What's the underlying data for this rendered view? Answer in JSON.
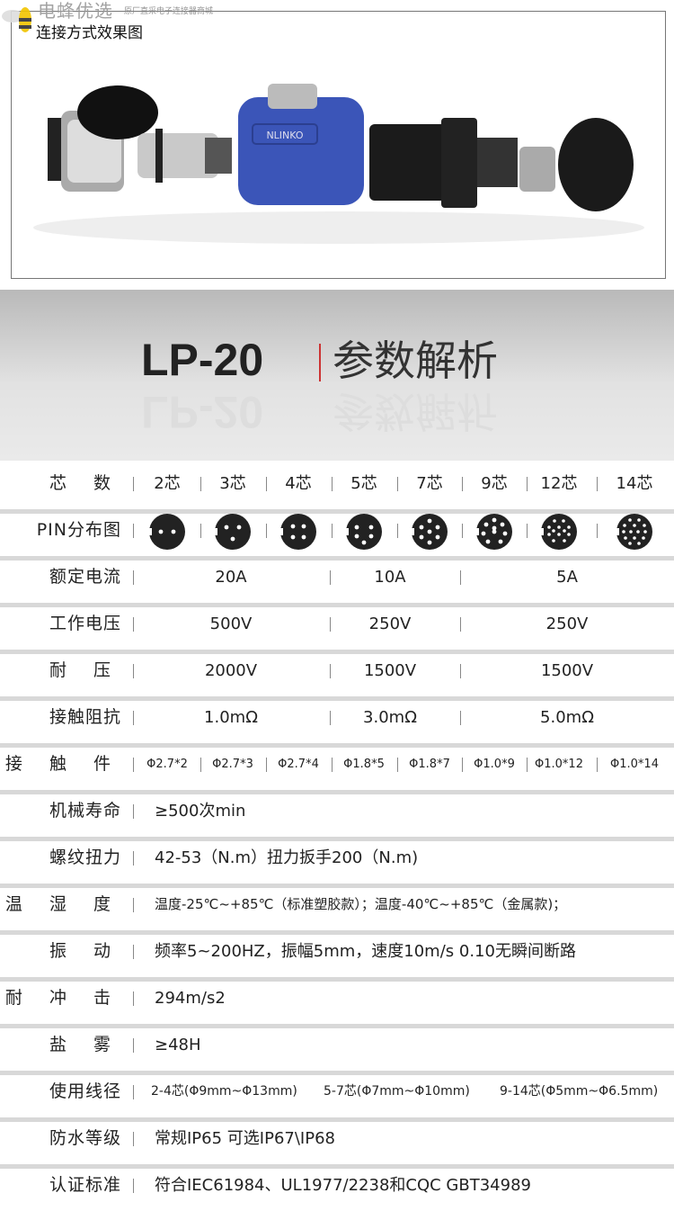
{
  "photo": {
    "caption": "连接方式效果图",
    "logo_text": "电蜂优选",
    "logo_subtitle": "原厂直采电子连接器商城",
    "product_mark": "NLINKO"
  },
  "header": {
    "model": "LP-20",
    "title": "参数解析"
  },
  "colors": {
    "connector_blue": "#3b55b8",
    "header_bg": "#cfcfcf",
    "divider": "#d8d8d8",
    "title_accent": "#cc3333"
  },
  "rows": [
    {
      "label": "芯 数",
      "cells": [
        "2芯",
        "3芯",
        "4芯",
        "5芯",
        "7芯",
        "9芯",
        "12芯",
        "14芯"
      ]
    },
    {
      "label": "PIN分布图",
      "pins": [
        2,
        3,
        4,
        5,
        7,
        9,
        12,
        14
      ]
    },
    {
      "label": "额定电流",
      "groups": [
        "20A",
        "10A",
        "5A"
      ]
    },
    {
      "label": "工作电压",
      "groups": [
        "500V",
        "250V",
        "250V"
      ]
    },
    {
      "label": "耐 压",
      "groups": [
        "2000V",
        "1500V",
        "1500V"
      ]
    },
    {
      "label": "接触阻抗",
      "groups": [
        "1.0mΩ",
        "3.0mΩ",
        "5.0mΩ"
      ]
    },
    {
      "label": "接 触 件",
      "cells": [
        "Φ2.7*2",
        "Φ2.7*3",
        "Φ2.7*4",
        "Φ1.8*5",
        "Φ1.8*7",
        "Φ1.0*9",
        "Φ1.0*12",
        "Φ1.0*14"
      ]
    },
    {
      "label": "机械寿命",
      "text": "≥500次min"
    },
    {
      "label": "螺纹扭力",
      "text": "42-53（N.m）扭力扳手200（N.m)"
    },
    {
      "label": "温 湿 度",
      "text": "温度-25℃~+85℃（标准塑胶款）；温度-40℃~+85℃（金属款)；"
    },
    {
      "label": "振 动",
      "text": "频率5~200HZ，振幅5mm，速度10m/s 0.10无瞬间断路"
    },
    {
      "label": "耐 冲 击",
      "text": "294m/s2"
    },
    {
      "label": "盐 雾",
      "text": "≥48H"
    },
    {
      "label": "使用线径",
      "parts": [
        "2-4芯(Φ9mm~Φ13mm)",
        "5-7芯(Φ7mm~Φ10mm)",
        "9-14芯(Φ5mm~Φ6.5mm)"
      ]
    },
    {
      "label": "防水等级",
      "text": "常规IP65 可选IP67\\IP68"
    },
    {
      "label": "认证标准",
      "text": "符合IEC61984、UL1977/2238和CQC GBT34989"
    }
  ]
}
